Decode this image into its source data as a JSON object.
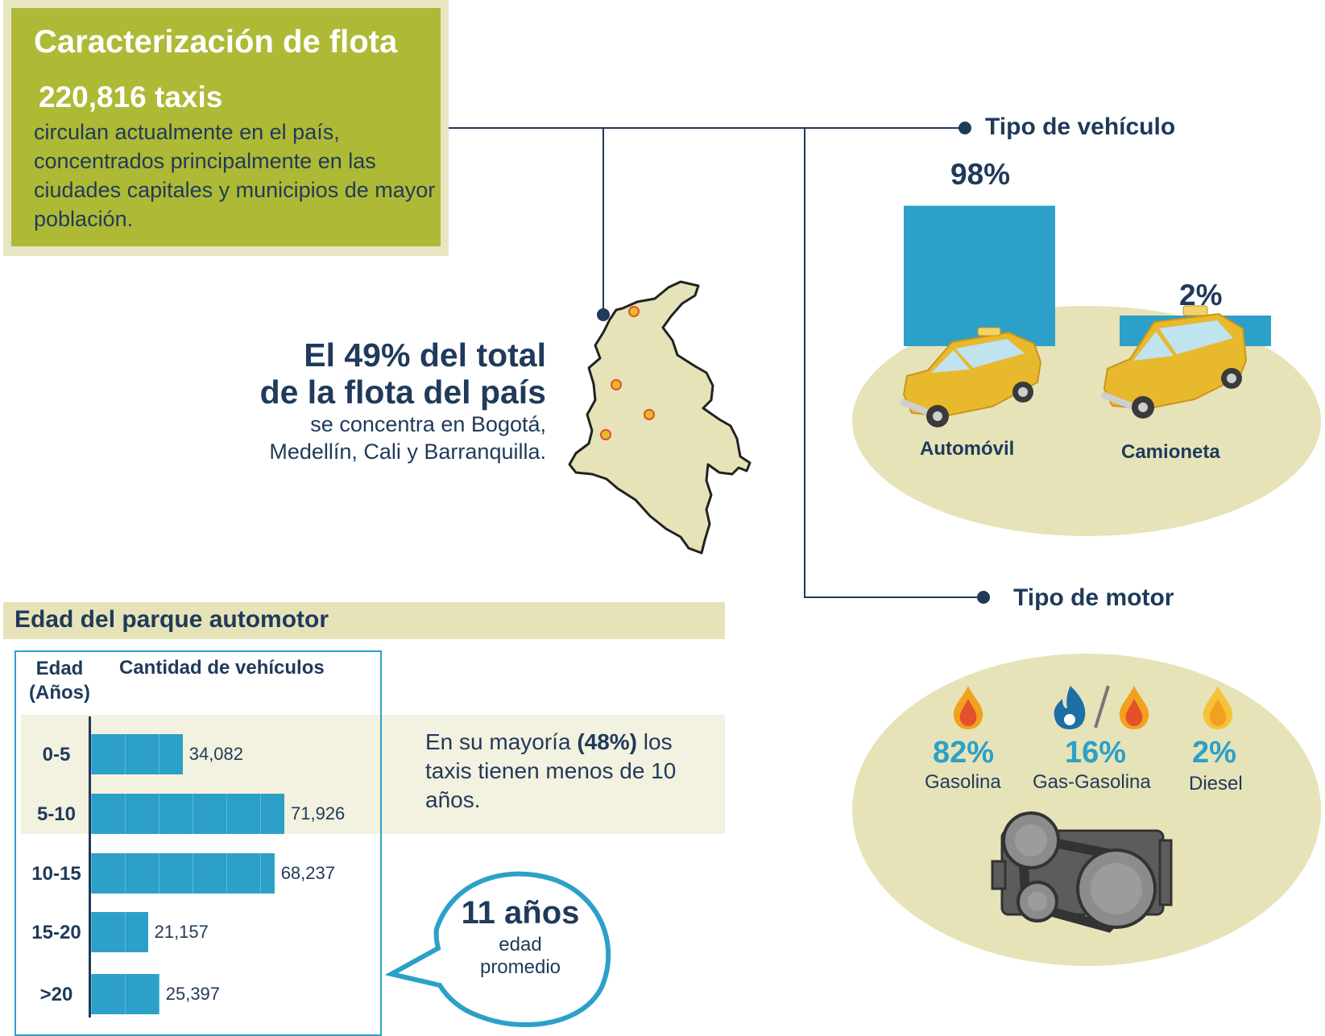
{
  "header": {
    "title": "Caracterización de flota",
    "count": "220,816 taxis",
    "description": "circulan actualmente en el país, concentrados principalmente en las ciudades capitales y municipios de mayor población."
  },
  "map": {
    "line1": "El 49% del total",
    "line2": "de la flota del país",
    "line3": "se concentra en Bogotá,",
    "line4": "Medellín, Cali y Barranquilla."
  },
  "vehicle_type": {
    "title": "Tipo de vehículo",
    "items": [
      {
        "label": "Automóvil",
        "pct_label": "98%"
      },
      {
        "label": "Camioneta",
        "pct_label": "2%"
      }
    ]
  },
  "engine_type": {
    "title": "Tipo de motor",
    "items": [
      {
        "label": "Gasolina",
        "pct_label": "82%"
      },
      {
        "label": "Gas-Gasolina",
        "pct_label": "16%"
      },
      {
        "label": "Diesel",
        "pct_label": "2%"
      }
    ]
  },
  "age": {
    "title": "Edad del parque automotor",
    "col1_line1": "Edad",
    "col1_line2": "(Años)",
    "col2": "Cantidad de vehículos",
    "note_pre": "En su mayoría ",
    "note_bold": "(48%)",
    "note_post": " los taxis tienen menos de 10 años.",
    "avg_value": "11 años",
    "avg_label1": "edad",
    "avg_label2": "promedio",
    "value_labels": [
      "34,082",
      "71,926",
      "68,237",
      "21,157",
      "25,397"
    ]
  },
  "colors": {
    "olive": "#aeb935",
    "navy": "#1f3a5a",
    "teal": "#2ca0c8",
    "beige": "#e6e3b8",
    "taxi_yellow": "#e8b92c",
    "flame_red": "#e3512a",
    "flame_orange": "#f2a11f",
    "gas_blue": "#1d6fa5"
  },
  "chart_data": [
    {
      "type": "bar",
      "title": "Tipo de vehículo",
      "categories": [
        "Automóvil",
        "Camioneta"
      ],
      "values": [
        98,
        2
      ],
      "unit": "%"
    },
    {
      "type": "bar",
      "title": "Edad del parque automotor",
      "xlabel": "Cantidad de vehículos",
      "ylabel": "Edad (Años)",
      "orientation": "horizontal",
      "categories": [
        "0-5",
        "5-10",
        "10-15",
        "15-20",
        ">20"
      ],
      "values": [
        34082,
        71926,
        68237,
        21157,
        25397
      ]
    }
  ]
}
